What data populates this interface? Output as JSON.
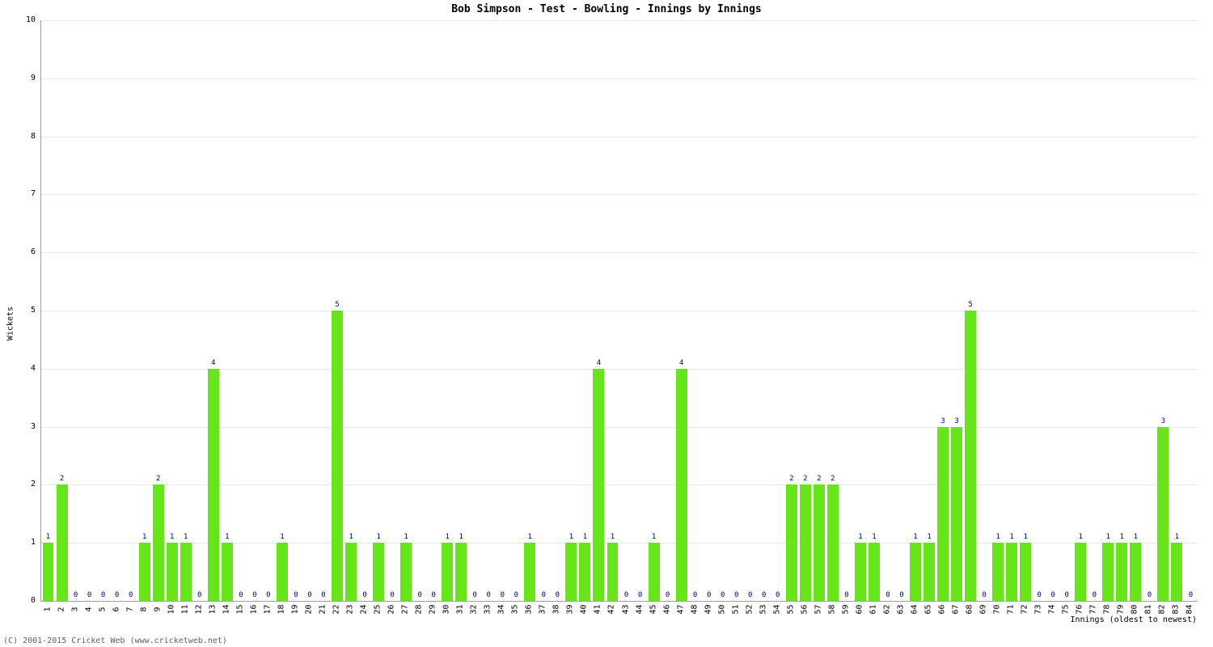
{
  "chart": {
    "type": "bar",
    "title": "Bob Simpson - Test - Bowling - Innings by Innings",
    "ylabel": "Wickets",
    "xlabel": "Innings (oldest to newest)",
    "ylim": [
      0,
      10
    ],
    "ytick_step": 1,
    "background_color": "#ffffff",
    "grid_color": "#e8e8e8",
    "border_color": "#a0a0a0",
    "bar_color": "#66e619",
    "value_label_color": "#000080",
    "title_fontsize": 13,
    "label_fontsize": 10,
    "tick_fontsize": 10,
    "value_fontsize": 9,
    "bar_width_ratio": 0.82,
    "values": [
      1,
      2,
      0,
      0,
      0,
      0,
      0,
      1,
      2,
      1,
      1,
      0,
      4,
      1,
      0,
      0,
      0,
      1,
      0,
      0,
      0,
      5,
      1,
      0,
      1,
      0,
      1,
      0,
      0,
      1,
      1,
      0,
      0,
      0,
      0,
      1,
      0,
      0,
      1,
      1,
      4,
      1,
      0,
      0,
      1,
      0,
      4,
      0,
      0,
      0,
      0,
      0,
      0,
      0,
      2,
      2,
      2,
      2,
      0,
      1,
      1,
      0,
      0,
      1,
      1,
      3,
      3,
      5,
      0,
      1,
      1,
      1,
      0,
      0,
      0,
      1,
      0,
      1,
      1,
      1,
      0,
      3,
      1,
      0
    ]
  },
  "footer": {
    "copyright": "(C) 2001-2015 Cricket Web (www.cricketweb.net)"
  }
}
